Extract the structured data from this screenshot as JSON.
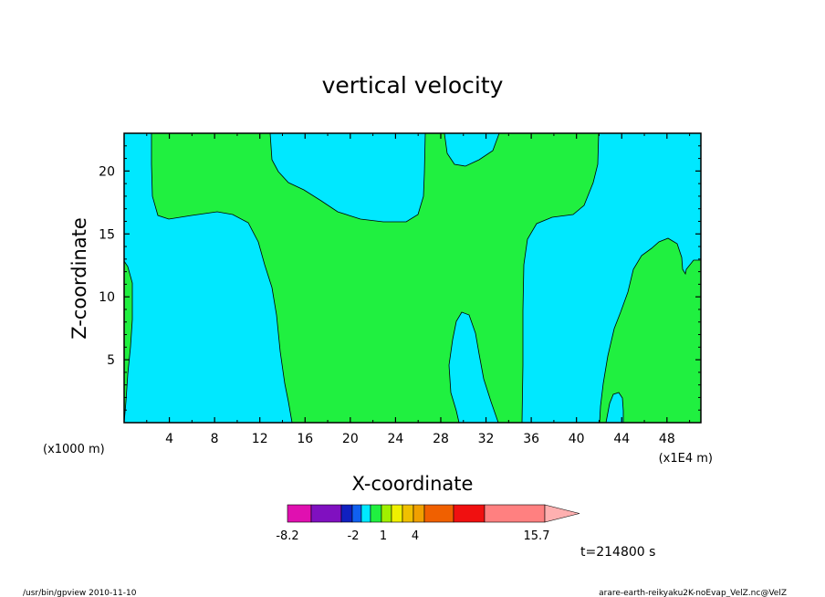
{
  "chart_data": {
    "type": "heatmap",
    "title": "vertical velocity",
    "xlabel": "X-coordinate",
    "ylabel": "Z-coordinate",
    "x_unit_label": "(x1000 m)",
    "x_scale_label": "(x1E4 m)",
    "x_ticks": [
      "4",
      "8",
      "12",
      "16",
      "20",
      "24",
      "28",
      "32",
      "36",
      "40",
      "44",
      "48"
    ],
    "y_ticks": [
      "5",
      "10",
      "15",
      "20"
    ],
    "xlim": [
      0,
      51
    ],
    "ylim": [
      0,
      23
    ],
    "time_label": "t=214800 s",
    "colorbar": {
      "labels": [
        "-8.2",
        "-2",
        "1",
        "4",
        "15.7"
      ],
      "colors": [
        "#e010b0",
        "#8010c0",
        "#1020c0",
        "#1060f0",
        "#00e8ff",
        "#20f040",
        "#a0f000",
        "#f0f000",
        "#f0c000",
        "#f0a000",
        "#f06000",
        "#f01010",
        "#ff8080",
        "#ffb0b0"
      ]
    },
    "fields": {
      "background": "#00e8ff",
      "positive_region": "#20f040"
    }
  },
  "footer": {
    "left": "/usr/bin/gpview   2010-11-10",
    "right": "arare-earth-reikyaku2K-noEvap_VelZ.nc@VelZ"
  }
}
